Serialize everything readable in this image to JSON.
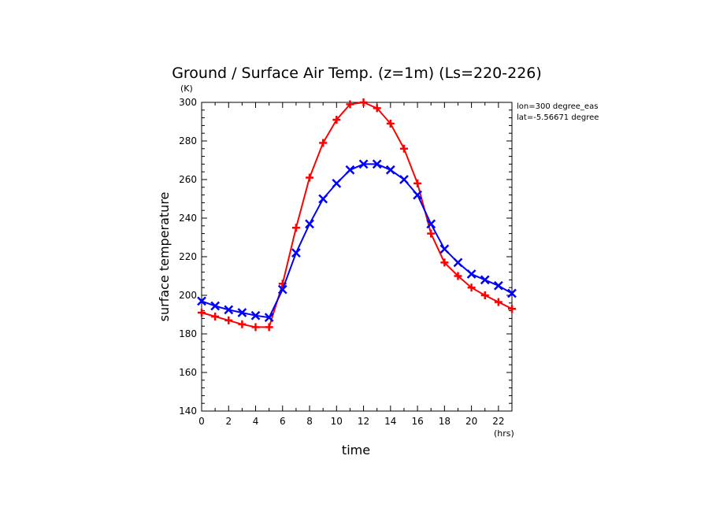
{
  "chart_data": {
    "type": "line",
    "title": "Ground / Surface Air Temp. (z=1m) (Ls=220-226)",
    "xlabel": "time",
    "xunit": "(hrs)",
    "ylabel": "surface temperature",
    "yunit": "(K)",
    "xlim": [
      0,
      23
    ],
    "ylim": [
      140,
      300
    ],
    "xticks": [
      0,
      2,
      4,
      6,
      8,
      10,
      12,
      14,
      16,
      18,
      20,
      22
    ],
    "yticks": [
      140,
      160,
      180,
      200,
      220,
      240,
      260,
      280,
      300
    ],
    "annotations": [
      "lon=300 degree_eas",
      "lat=-5.56671 degree"
    ],
    "x": [
      0,
      1,
      2,
      3,
      4,
      5,
      6,
      7,
      8,
      9,
      10,
      11,
      12,
      13,
      14,
      15,
      16,
      17,
      18,
      19,
      20,
      21,
      22,
      23
    ],
    "series": [
      {
        "color": "#ff0000",
        "marker": "plus",
        "values": [
          191,
          189,
          187,
          185,
          183.5,
          183.5,
          206,
          235,
          261,
          279,
          291,
          299,
          300,
          297,
          289,
          276,
          258,
          232,
          217,
          210,
          204,
          200,
          196.5,
          193
        ]
      },
      {
        "color": "#0000ff",
        "marker": "x",
        "values": [
          197,
          194.5,
          192.5,
          191,
          189.5,
          188.5,
          203,
          222,
          237,
          250,
          258,
          265,
          268,
          268,
          265,
          260,
          252,
          237,
          224,
          217,
          211,
          208,
          205,
          201
        ]
      }
    ],
    "grid": false,
    "legend": "none"
  }
}
